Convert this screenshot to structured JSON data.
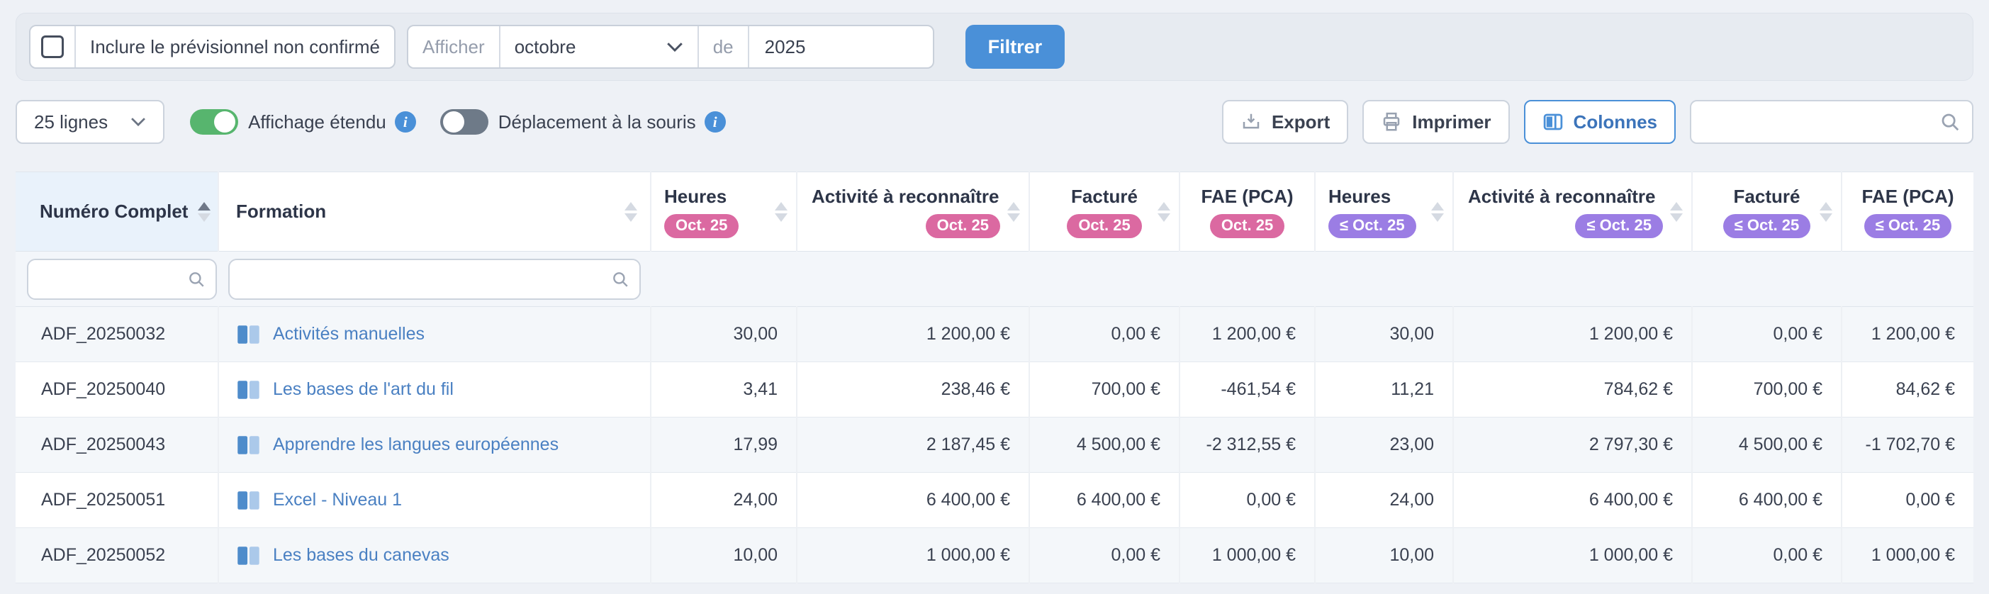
{
  "colors": {
    "accent_blue": "#4a90d8",
    "badge_pink": "#db69a1",
    "badge_purple": "#9b7de4",
    "toggle_on_green": "#57b56e",
    "link_blue": "#4a80c2",
    "sorted_header_bg": "#e9f2fb"
  },
  "filter_bar": {
    "include_checked": false,
    "include_label": "Inclure le prévisionnel non confirmé",
    "afficher_label": "Afficher",
    "month_value": "octobre",
    "de_label": "de",
    "year_value": "2025",
    "filter_button": "Filtrer"
  },
  "toolbar": {
    "rows_select_value": "25 lignes",
    "extended_toggle_label": "Affichage étendu",
    "extended_on": true,
    "drag_toggle_label": "Déplacement à la souris",
    "drag_on": false,
    "export_label": "Export",
    "print_label": "Imprimer",
    "columns_label": "Colonnes",
    "search_value": ""
  },
  "table": {
    "columns": [
      {
        "id": "numero-complet",
        "label": "Numéro Complet",
        "badge": null,
        "badge_color": null,
        "sortable": true,
        "sorted": "asc"
      },
      {
        "id": "formation",
        "label": "Formation",
        "badge": null,
        "badge_color": null,
        "sortable": true,
        "sorted": null
      },
      {
        "id": "heures-oct-25",
        "label": "Heures",
        "badge": "Oct. 25",
        "badge_color": "pink",
        "sortable": true,
        "sorted": null
      },
      {
        "id": "activite-a-reconnaitre-oct-25",
        "label": "Activité à reconnaître",
        "badge": "Oct. 25",
        "badge_color": "pink",
        "sortable": true,
        "sorted": null
      },
      {
        "id": "facture-oct-25",
        "label": "Facturé",
        "badge": "Oct. 25",
        "badge_color": "pink",
        "sortable": true,
        "sorted": null
      },
      {
        "id": "fae-pca-oct-25",
        "label": "FAE (PCA)",
        "badge": "Oct. 25",
        "badge_color": "pink",
        "sortable": false,
        "sorted": null
      },
      {
        "id": "heures-cumul-oct-25",
        "label": "Heures",
        "badge": "≤ Oct. 25",
        "badge_color": "purple",
        "sortable": true,
        "sorted": null
      },
      {
        "id": "activite-a-reconnaitre-cumul-oct-25",
        "label": "Activité à reconnaître",
        "badge": "≤ Oct. 25",
        "badge_color": "purple",
        "sortable": true,
        "sorted": null
      },
      {
        "id": "facture-cumul-oct-25",
        "label": "Facturé",
        "badge": "≤ Oct. 25",
        "badge_color": "purple",
        "sortable": true,
        "sorted": null
      },
      {
        "id": "fae-pca-cumul-oct-25",
        "label": "FAE (PCA)",
        "badge": "≤ Oct. 25",
        "badge_color": "purple",
        "sortable": false,
        "sorted": null
      }
    ],
    "filter_inputs": [
      {
        "column": "numero-complet",
        "value": ""
      },
      {
        "column": "formation",
        "value": ""
      }
    ],
    "rows": [
      {
        "numero": "ADF_20250032",
        "formation": "Activités manuelles",
        "values": [
          "30,00",
          "1 200,00 €",
          "0,00 €",
          "1 200,00 €",
          "30,00",
          "1 200,00 €",
          "0,00 €",
          "1 200,00 €"
        ]
      },
      {
        "numero": "ADF_20250040",
        "formation": "Les bases de l'art du fil",
        "values": [
          "3,41",
          "238,46 €",
          "700,00 €",
          "-461,54 €",
          "11,21",
          "784,62 €",
          "700,00 €",
          "84,62 €"
        ]
      },
      {
        "numero": "ADF_20250043",
        "formation": "Apprendre les langues européennes",
        "values": [
          "17,99",
          "2 187,45 €",
          "4 500,00 €",
          "-2 312,55 €",
          "23,00",
          "2 797,30 €",
          "4 500,00 €",
          "-1 702,70 €"
        ]
      },
      {
        "numero": "ADF_20250051",
        "formation": "Excel - Niveau 1",
        "values": [
          "24,00",
          "6 400,00 €",
          "6 400,00 €",
          "0,00 €",
          "24,00",
          "6 400,00 €",
          "6 400,00 €",
          "0,00 €"
        ]
      },
      {
        "numero": "ADF_20250052",
        "formation": "Les bases du canevas",
        "values": [
          "10,00",
          "1 000,00 €",
          "0,00 €",
          "1 000,00 €",
          "10,00",
          "1 000,00 €",
          "0,00 €",
          "1 000,00 €"
        ]
      }
    ]
  }
}
